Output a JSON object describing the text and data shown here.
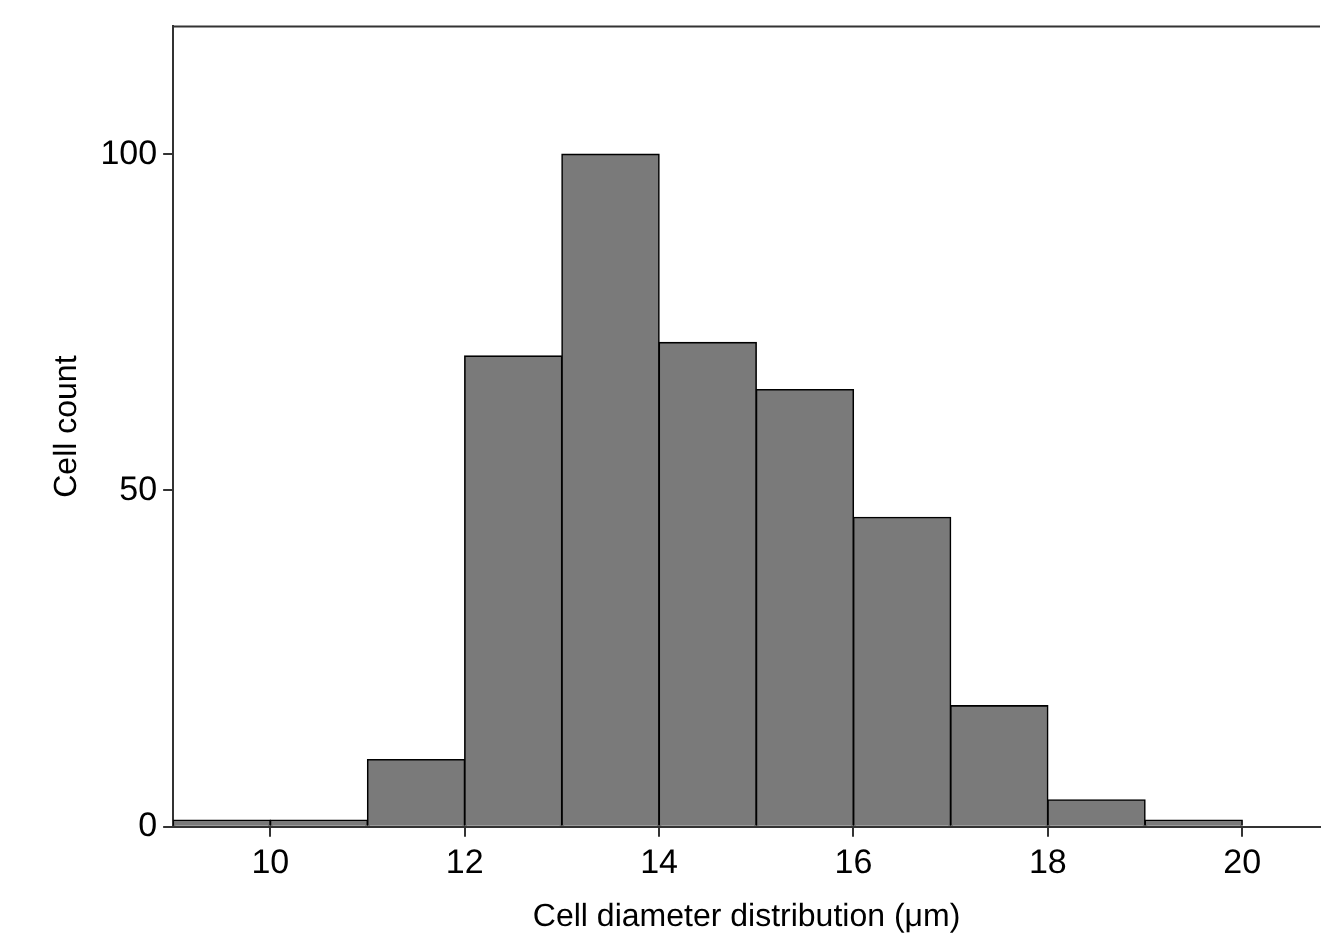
{
  "chart_data": {
    "type": "histogram",
    "xlabel": "Cell diameter distribution (μm)",
    "ylabel": "Cell count",
    "bins": [
      9,
      10,
      11,
      12,
      13,
      14,
      15,
      16,
      17,
      18,
      19,
      20
    ],
    "values": [
      1,
      1,
      10,
      70,
      100,
      72,
      65,
      46,
      18,
      4,
      1
    ],
    "color": "#7a7a7a",
    "xlim": [
      9,
      20.8
    ],
    "xticks": [
      10,
      12,
      14,
      16,
      18,
      20
    ],
    "ylim": [
      0,
      119
    ],
    "yticks": [
      0,
      50,
      100
    ],
    "grid": false,
    "legend": false
  }
}
